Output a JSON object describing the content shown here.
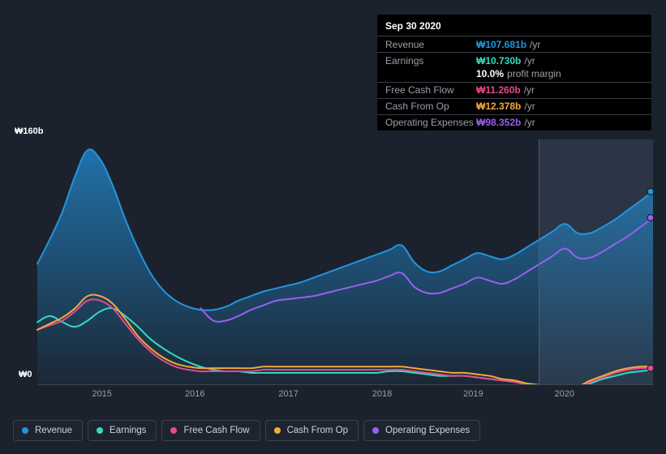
{
  "chart": {
    "type": "area-line",
    "background_color": "#1b222d",
    "plot_background_band_color": "#202938",
    "text_color": "#ffffff",
    "muted_text_color": "#9aa0a8",
    "axis_line_color": "#3c4454",
    "x_labels": [
      "2015",
      "2016",
      "2017",
      "2018",
      "2019",
      "2020"
    ],
    "x_positions_pct": [
      10.5,
      25.6,
      40.8,
      56.0,
      70.8,
      85.6
    ],
    "cursor_pct": 81.5,
    "highlight_start_pct": 81.5,
    "highlight_color": "#2b3545",
    "y_top_label": "₩160b",
    "y_bottom_label": "₩0",
    "ylim": [
      0,
      160
    ],
    "series": [
      {
        "key": "revenue",
        "label": "Revenue",
        "color": "#2394df",
        "fill": true,
        "fill_opacity": 0.6,
        "width": 2,
        "values": [
          79,
          95,
          113,
          136,
          153,
          147,
          130,
          108,
          89,
          73,
          62,
          55,
          51,
          49,
          49,
          51,
          55,
          58,
          61,
          63,
          65,
          67,
          70,
          73,
          76,
          79,
          82,
          85,
          88,
          91,
          80,
          74,
          74,
          78,
          82,
          86,
          84,
          82,
          85,
          90,
          95,
          100,
          105,
          99,
          99,
          103,
          108,
          114,
          120,
          126
        ]
      },
      {
        "key": "earnings",
        "label": "Earnings",
        "color": "#31dbc1",
        "fill": false,
        "width": 2,
        "values": [
          41,
          45,
          41,
          38,
          42,
          48,
          50,
          45,
          38,
          30,
          24,
          19,
          15,
          12,
          10,
          9,
          9,
          8,
          8,
          8,
          8,
          8,
          8,
          8,
          8,
          8,
          8,
          8,
          9,
          9,
          8,
          7,
          6,
          6,
          6,
          5,
          4,
          3,
          2,
          1,
          0,
          -1,
          -2,
          -2,
          1,
          4,
          6,
          8,
          9,
          10
        ]
      },
      {
        "key": "fcf",
        "label": "Free Cash Flow",
        "color": "#e74a8a",
        "fill": false,
        "width": 2,
        "values": [
          36,
          39,
          42,
          48,
          55,
          55,
          50,
          40,
          30,
          22,
          16,
          12,
          10,
          9,
          9,
          9,
          9,
          9,
          10,
          10,
          10,
          10,
          10,
          10,
          10,
          10,
          10,
          10,
          10,
          10,
          9,
          8,
          7,
          6,
          6,
          5,
          4,
          3,
          2,
          0,
          -1,
          -2,
          -3,
          -2,
          2,
          5,
          8,
          10,
          11,
          11
        ]
      },
      {
        "key": "cfo",
        "label": "Cash From Op",
        "color": "#f2a840",
        "fill": false,
        "width": 2,
        "values": [
          36,
          40,
          44,
          50,
          58,
          58,
          53,
          43,
          32,
          24,
          18,
          14,
          12,
          11,
          11,
          11,
          11,
          11,
          12,
          12,
          12,
          12,
          12,
          12,
          12,
          12,
          12,
          12,
          12,
          12,
          11,
          10,
          9,
          8,
          8,
          7,
          6,
          4,
          3,
          1,
          0,
          -1,
          -2,
          -1,
          3,
          6,
          9,
          11,
          12,
          12
        ]
      },
      {
        "key": "opex",
        "label": "Operating Expenses",
        "color": "#9a5ff1",
        "fill": false,
        "width": 2,
        "values": [
          null,
          null,
          null,
          null,
          null,
          null,
          null,
          null,
          null,
          null,
          null,
          null,
          null,
          50,
          42,
          42,
          45,
          49,
          52,
          55,
          56,
          57,
          58,
          60,
          62,
          64,
          66,
          68,
          71,
          73,
          64,
          60,
          60,
          63,
          66,
          70,
          68,
          66,
          69,
          74,
          79,
          84,
          89,
          83,
          83,
          87,
          92,
          97,
          103,
          109
        ]
      }
    ],
    "end_markers": [
      {
        "key": "revenue",
        "color": "#2394df"
      },
      {
        "key": "opex",
        "color": "#9a5ff1"
      },
      {
        "key": "fcf",
        "color": "#e74a8a"
      }
    ]
  },
  "tooltip": {
    "date": "Sep 30 2020",
    "rows": [
      {
        "label": "Revenue",
        "value": "₩107.681b",
        "suffix": "/yr",
        "color": "#2394df"
      },
      {
        "label": "Earnings",
        "value": "₩10.730b",
        "suffix": "/yr",
        "color": "#31dbc1"
      },
      {
        "label": "",
        "value": "10.0%",
        "suffix": "profit margin",
        "color": "#ffffff",
        "noborder": true
      },
      {
        "label": "Free Cash Flow",
        "value": "₩11.260b",
        "suffix": "/yr",
        "color": "#e74a8a"
      },
      {
        "label": "Cash From Op",
        "value": "₩12.378b",
        "suffix": "/yr",
        "color": "#f2a840"
      },
      {
        "label": "Operating Expenses",
        "value": "₩98.352b",
        "suffix": "/yr",
        "color": "#9a5ff1"
      }
    ]
  },
  "legend": [
    {
      "key": "revenue",
      "label": "Revenue",
      "color": "#2394df"
    },
    {
      "key": "earnings",
      "label": "Earnings",
      "color": "#31dbc1"
    },
    {
      "key": "fcf",
      "label": "Free Cash Flow",
      "color": "#e74a8a"
    },
    {
      "key": "cfo",
      "label": "Cash From Op",
      "color": "#f2a840"
    },
    {
      "key": "opex",
      "label": "Operating Expenses",
      "color": "#9a5ff1"
    }
  ]
}
